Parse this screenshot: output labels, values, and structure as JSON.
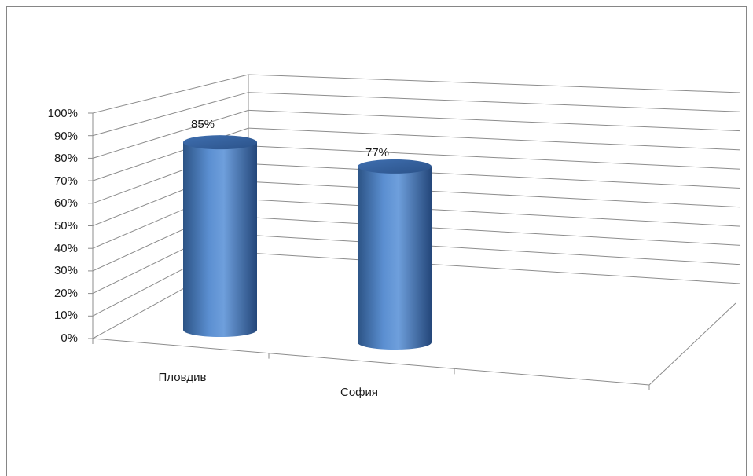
{
  "chart_data": {
    "type": "bar",
    "style": "3d-cylinder",
    "categories": [
      "Пловдив",
      "София"
    ],
    "series": [
      {
        "values": [
          85,
          77
        ],
        "color": "#4f81bd"
      }
    ],
    "data_labels": [
      "85%",
      "77%"
    ],
    "y_ticks": [
      "0%",
      "10%",
      "20%",
      "30%",
      "40%",
      "50%",
      "60%",
      "70%",
      "80%",
      "90%",
      "100%"
    ],
    "ylim": [
      0,
      100
    ],
    "y_unit": "%",
    "grid": true,
    "legend": "none"
  }
}
